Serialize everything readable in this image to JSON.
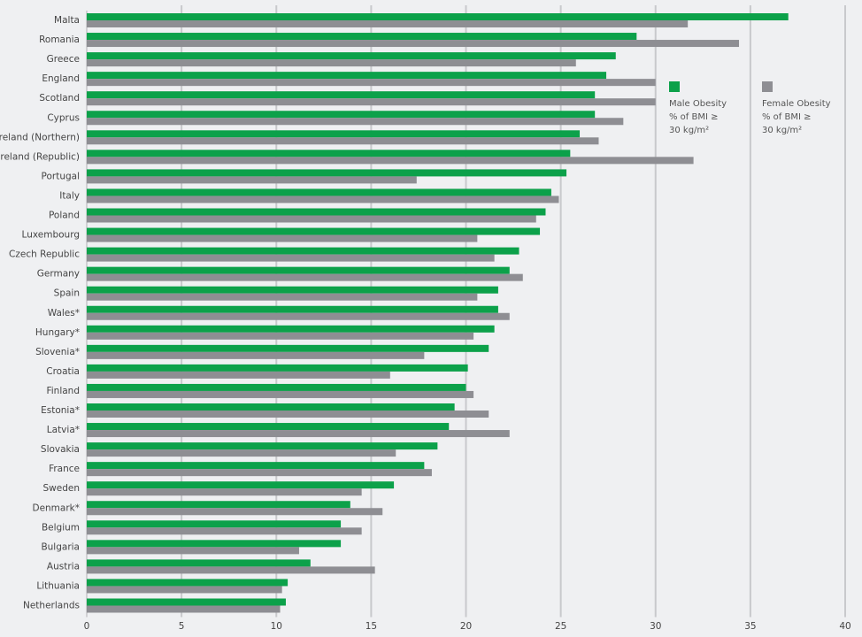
{
  "chart_data": {
    "type": "bar",
    "orientation": "horizontal",
    "categories": [
      "Malta",
      "Romania",
      "Greece",
      "England",
      "Scotland",
      "Cyprus",
      "Ireland (Northern)",
      "Ireland (Republic)",
      "Portugal",
      "Italy",
      "Poland",
      "Luxembourg",
      "Czech Republic",
      "Germany",
      "Spain",
      "Wales*",
      "Hungary*",
      "Slovenia*",
      "Croatia",
      "Finland",
      "Estonia*",
      "Latvia*",
      "Slovakia",
      "France",
      "Sweden",
      "Denmark*",
      "Belgium",
      "Bulgaria",
      "Austria",
      "Lithuania",
      "Netherlands"
    ],
    "series": [
      {
        "name": "Male Obesity % of BMI ≥ 30 kg/m²",
        "color": "#0ca14a",
        "values": [
          37.0,
          29.0,
          27.9,
          27.4,
          26.8,
          26.8,
          26.0,
          25.5,
          25.3,
          24.5,
          24.2,
          23.9,
          22.8,
          22.3,
          21.7,
          21.7,
          21.5,
          21.2,
          20.1,
          20.0,
          19.4,
          19.1,
          18.5,
          17.8,
          16.2,
          13.9,
          13.4,
          13.4,
          11.8,
          10.6,
          10.5
        ]
      },
      {
        "name": "Female Obesity % of BMI ≥ 30 kg/m²",
        "color": "#8e8e93",
        "values": [
          31.7,
          34.4,
          25.8,
          30.0,
          30.0,
          28.3,
          27.0,
          32.0,
          17.4,
          24.9,
          23.7,
          20.6,
          21.5,
          23.0,
          20.6,
          22.3,
          20.4,
          17.8,
          16.0,
          20.4,
          21.2,
          22.3,
          16.3,
          18.2,
          14.5,
          15.6,
          14.5,
          11.2,
          15.2,
          10.3,
          10.2
        ]
      }
    ],
    "xlim": [
      0,
      40
    ],
    "xticks": [
      "0",
      "5",
      "10",
      "15",
      "20",
      "25",
      "30",
      "35",
      "40"
    ],
    "legend_lines": [
      [
        "Male Obesity",
        "% of BMI ≥",
        "30 kg/m²"
      ],
      [
        "Female Obesity",
        "% of BMI ≥",
        "30 kg/m²"
      ]
    ],
    "legend_position": "top-right",
    "grid": true
  }
}
